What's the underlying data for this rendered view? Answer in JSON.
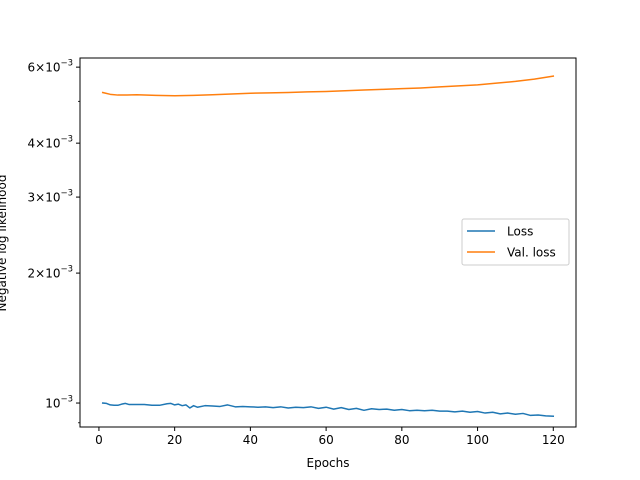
{
  "chart_data": {
    "type": "line",
    "title": "",
    "xlabel": "Epochs",
    "ylabel": "Negative log likelihood",
    "yscale": "log",
    "xlim": [
      -5,
      126
    ],
    "ylim": [
      0.00088,
      0.0063
    ],
    "grid": false,
    "legend_position": "center-right",
    "x_ticks": [
      0,
      20,
      40,
      60,
      80,
      100,
      120
    ],
    "x_tick_labels": [
      "0",
      "20",
      "40",
      "60",
      "80",
      "100",
      "120"
    ],
    "y_ticks": [
      {
        "value": 0.001,
        "mantissa": "",
        "exp": "−3"
      },
      {
        "value": 0.002,
        "mantissa": "2",
        "exp": "−3"
      },
      {
        "value": 0.003,
        "mantissa": "3",
        "exp": "−3"
      },
      {
        "value": 0.004,
        "mantissa": "4",
        "exp": "−3"
      },
      {
        "value": 0.006,
        "mantissa": "6",
        "exp": "−3"
      }
    ],
    "y_minor_ticks": [
      0.0009,
      0.005
    ],
    "series": [
      {
        "name": "Loss",
        "color": "#1f77b4",
        "x": [
          1,
          2,
          3,
          4,
          5,
          6,
          7,
          8,
          10,
          12,
          14,
          16,
          18,
          19,
          20,
          21,
          22,
          23,
          24,
          25,
          26,
          28,
          30,
          32,
          34,
          36,
          38,
          40,
          42,
          44,
          46,
          48,
          50,
          52,
          54,
          56,
          58,
          60,
          62,
          64,
          66,
          68,
          70,
          72,
          74,
          76,
          78,
          80,
          82,
          84,
          86,
          88,
          90,
          92,
          94,
          96,
          98,
          100,
          102,
          104,
          106,
          108,
          110,
          112,
          114,
          116,
          118,
          120
        ],
        "y": [
          0.001,
          0.000998,
          0.00099,
          0.000988,
          0.000988,
          0.000994,
          0.000998,
          0.000992,
          0.000992,
          0.000992,
          0.000988,
          0.000988,
          0.000996,
          0.000998,
          0.00099,
          0.000994,
          0.000986,
          0.00099,
          0.000974,
          0.000986,
          0.000978,
          0.000986,
          0.000984,
          0.000982,
          0.00099,
          0.00098,
          0.000982,
          0.00098,
          0.000978,
          0.00098,
          0.000976,
          0.00098,
          0.000974,
          0.000978,
          0.000976,
          0.00098,
          0.000972,
          0.000978,
          0.000968,
          0.000976,
          0.000966,
          0.000972,
          0.000962,
          0.00097,
          0.000966,
          0.000968,
          0.000962,
          0.000966,
          0.00096,
          0.000962,
          0.00096,
          0.000962,
          0.000958,
          0.000958,
          0.000954,
          0.000958,
          0.000952,
          0.000956,
          0.000948,
          0.000952,
          0.000944,
          0.000948,
          0.000942,
          0.000946,
          0.000936,
          0.000938,
          0.000934,
          0.000932
        ]
      },
      {
        "name": "Val. loss",
        "color": "#ff7f0e",
        "x": [
          1,
          3,
          5,
          7,
          10,
          15,
          20,
          25,
          30,
          35,
          40,
          45,
          50,
          55,
          60,
          65,
          70,
          75,
          80,
          85,
          90,
          95,
          100,
          105,
          110,
          115,
          120
        ],
        "y": [
          0.00524,
          0.00519,
          0.00517,
          0.00517,
          0.00518,
          0.00516,
          0.00515,
          0.00516,
          0.00518,
          0.0052,
          0.00522,
          0.00523,
          0.00524,
          0.00526,
          0.00527,
          0.00529,
          0.00531,
          0.00533,
          0.00535,
          0.00537,
          0.0054,
          0.00543,
          0.00546,
          0.00551,
          0.00556,
          0.00563,
          0.00572
        ]
      }
    ]
  }
}
